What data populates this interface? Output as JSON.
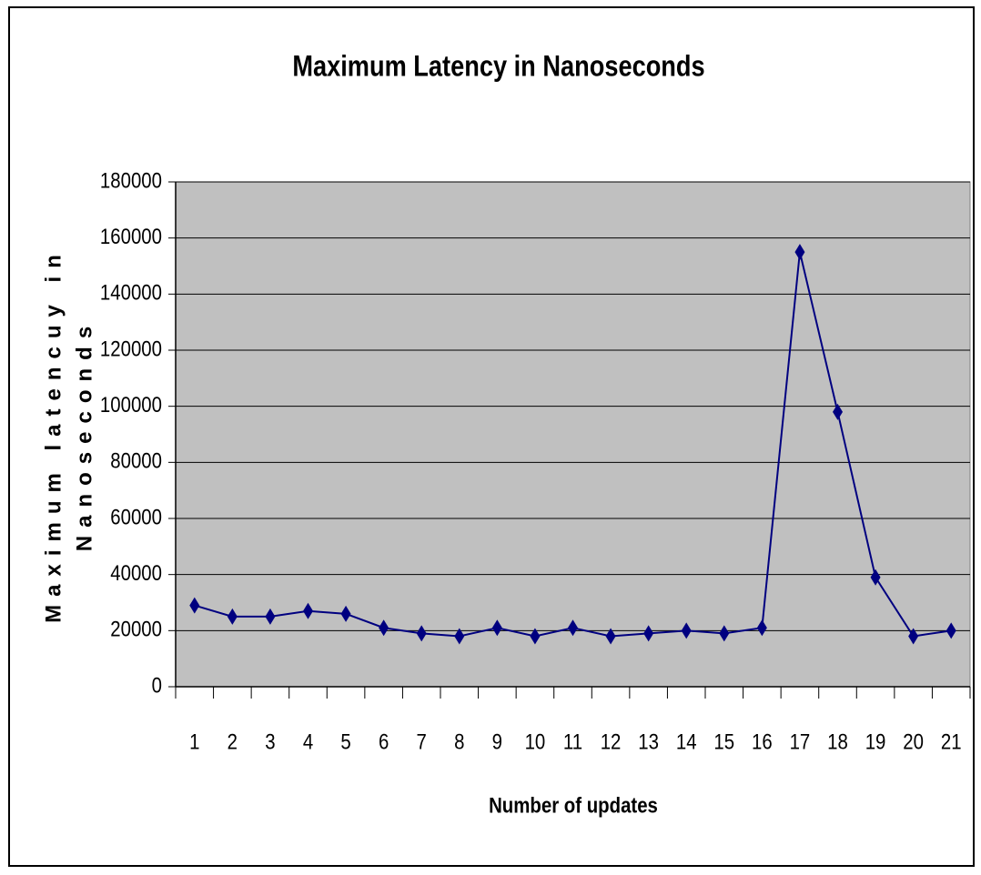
{
  "chart_data": {
    "type": "line",
    "title": "Maximum Latency in Nanoseconds",
    "xlabel": "Number of updates",
    "ylabel_lines": [
      "Maximum latencuy in",
      "Nanoseconds"
    ],
    "categories": [
      "1",
      "2",
      "3",
      "4",
      "5",
      "6",
      "7",
      "8",
      "9",
      "10",
      "11",
      "12",
      "13",
      "14",
      "15",
      "16",
      "17",
      "18",
      "19",
      "20",
      "21"
    ],
    "series": [
      {
        "name": "Maximum latency",
        "color": "#000080",
        "values": [
          29000,
          25000,
          25000,
          27000,
          26000,
          21000,
          19000,
          18000,
          21000,
          18000,
          21000,
          18000,
          19000,
          20000,
          19000,
          21000,
          155000,
          98000,
          39000,
          18000,
          20000
        ]
      }
    ],
    "ylim": [
      0,
      180000
    ],
    "yticks": [
      0,
      20000,
      40000,
      60000,
      80000,
      100000,
      120000,
      140000,
      160000,
      180000
    ],
    "grid": true,
    "plot_background": "#c0c0c0"
  }
}
